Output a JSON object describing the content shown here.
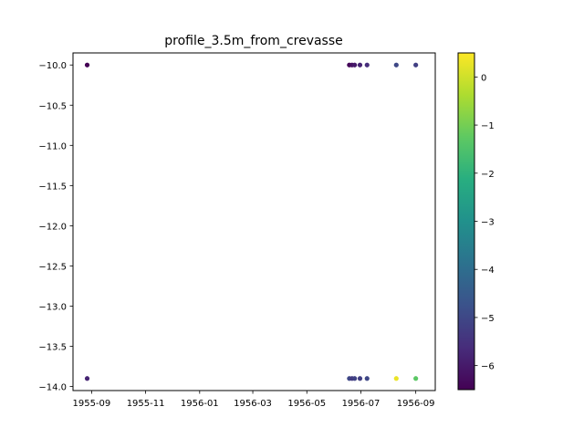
{
  "chart_data": {
    "type": "scatter",
    "title": "profile_3.5m_from_crevasse",
    "xlabel": "",
    "ylabel": "",
    "x_axis": "date",
    "xlim": [
      "1955-08-11",
      "1956-09-23"
    ],
    "ylim": [
      -14.05,
      -9.85
    ],
    "x_ticks": [
      "1955-09",
      "1955-11",
      "1956-01",
      "1956-03",
      "1956-05",
      "1956-07",
      "1956-09"
    ],
    "y_ticks": [
      -10.0,
      -10.5,
      -11.0,
      -11.5,
      -12.0,
      -12.5,
      -13.0,
      -13.5,
      -14.0
    ],
    "colorbar": {
      "colormap": "viridis",
      "range": [
        -6.5,
        0.5
      ],
      "ticks": [
        0,
        -1,
        -2,
        -3,
        -4,
        -5,
        -6
      ]
    },
    "grid": false,
    "points": [
      {
        "x": "1955-08-27",
        "y": -10.0,
        "value": -6.5
      },
      {
        "x": "1955-08-27",
        "y": -13.9,
        "value": -5.8
      },
      {
        "x": "1956-06-18",
        "y": -10.0,
        "value": -6.4
      },
      {
        "x": "1956-06-21",
        "y": -10.0,
        "value": -6.2
      },
      {
        "x": "1956-06-24",
        "y": -10.0,
        "value": -6.0
      },
      {
        "x": "1956-06-30",
        "y": -10.0,
        "value": -5.8
      },
      {
        "x": "1956-07-08",
        "y": -10.0,
        "value": -5.6
      },
      {
        "x": "1956-08-10",
        "y": -10.0,
        "value": -5.0
      },
      {
        "x": "1956-09-01",
        "y": -10.0,
        "value": -5.2
      },
      {
        "x": "1956-06-18",
        "y": -13.9,
        "value": -5.0
      },
      {
        "x": "1956-06-21",
        "y": -13.9,
        "value": -5.3
      },
      {
        "x": "1956-06-24",
        "y": -13.9,
        "value": -5.1
      },
      {
        "x": "1956-06-30",
        "y": -13.9,
        "value": -5.2
      },
      {
        "x": "1956-07-08",
        "y": -13.9,
        "value": -5.0
      },
      {
        "x": "1956-08-10",
        "y": -13.9,
        "value": 0.3
      },
      {
        "x": "1956-09-01",
        "y": -13.9,
        "value": -1.3
      }
    ]
  }
}
